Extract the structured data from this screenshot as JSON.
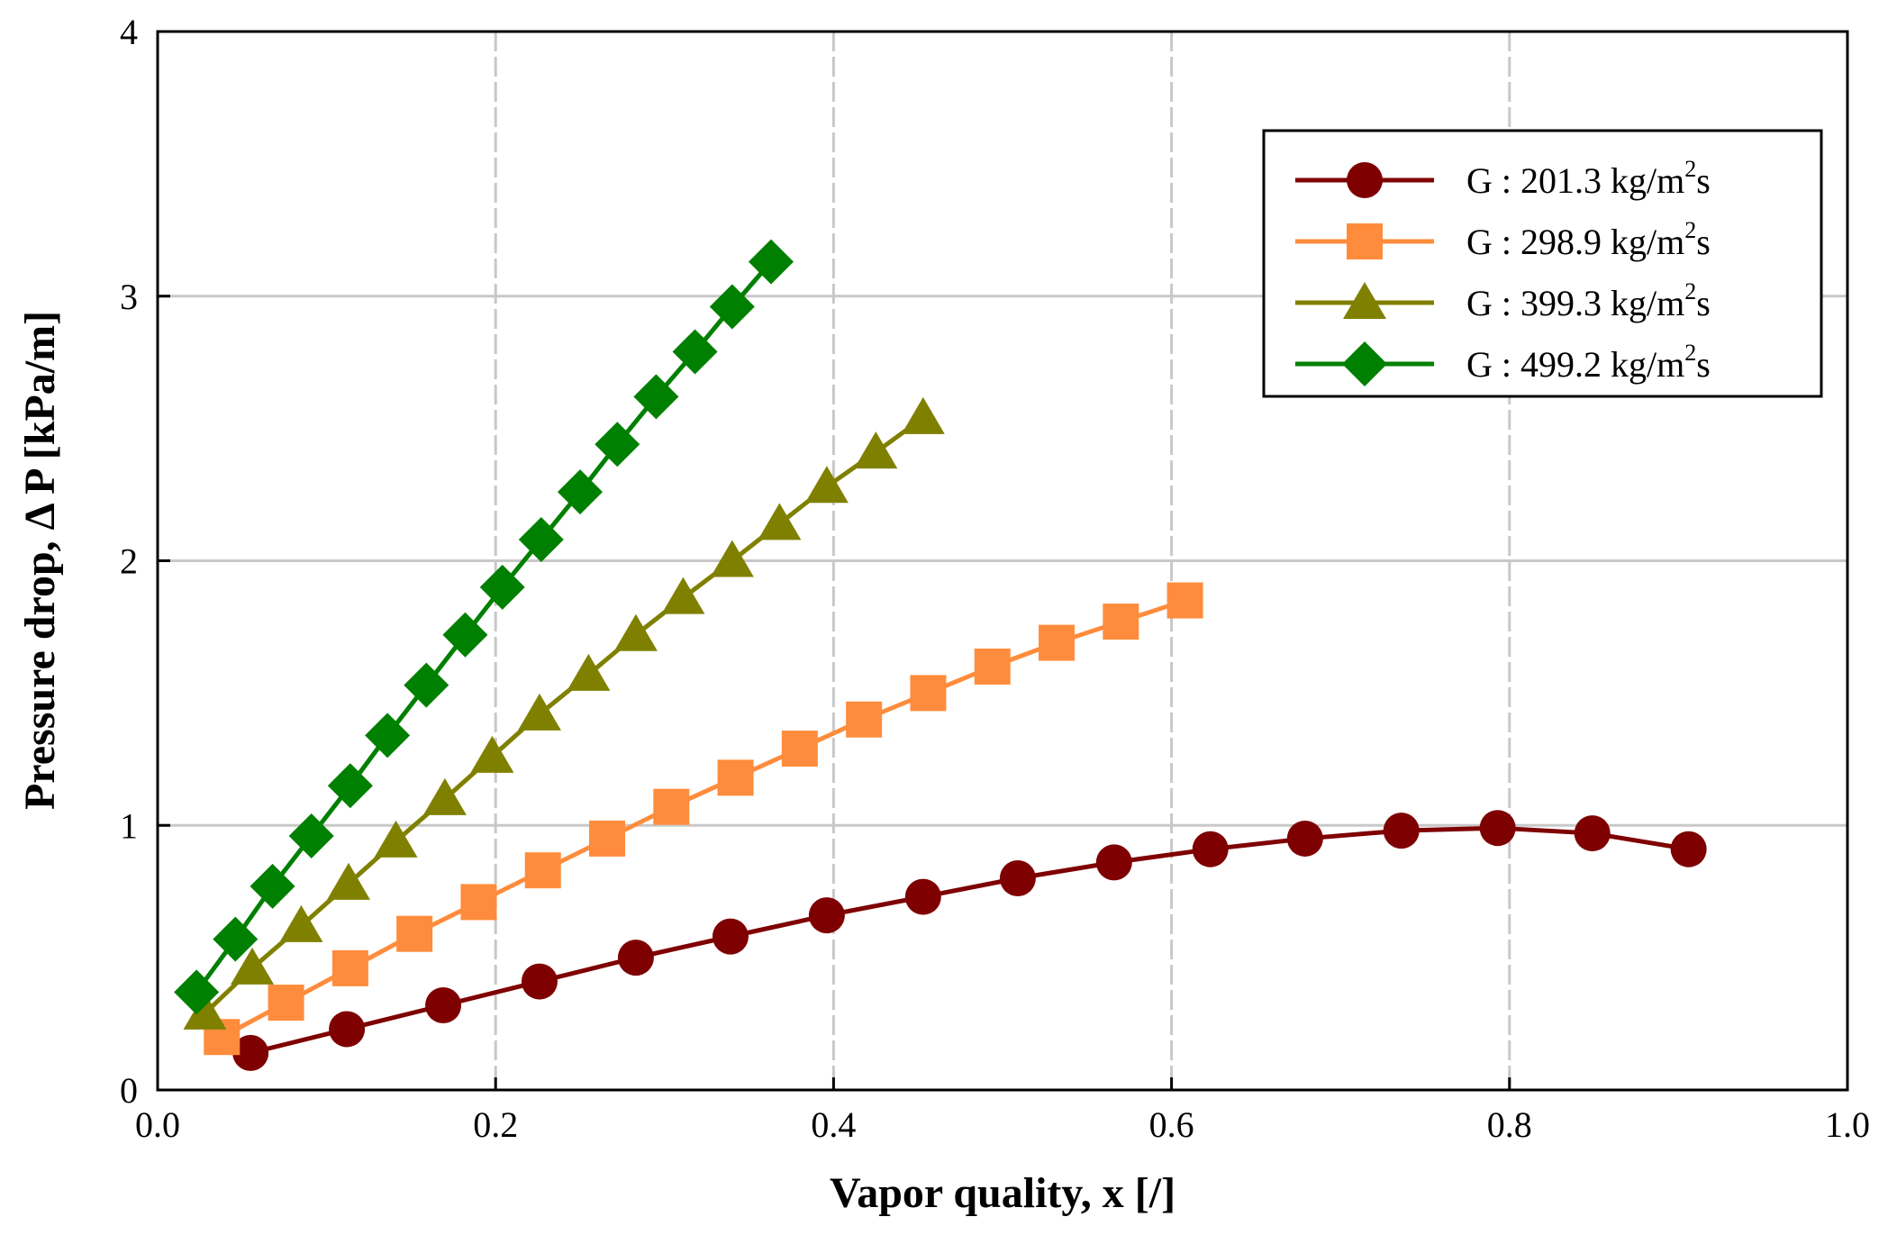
{
  "chart_data": {
    "type": "line",
    "title": "",
    "xlabel": "Vapor quality, x [/]",
    "ylabel": "Pressure drop, Δ  P [kPa/m]",
    "xlim": [
      0.0,
      1.0
    ],
    "ylim": [
      0,
      4
    ],
    "x_ticks": [
      "0.0",
      "0.2",
      "0.4",
      "0.6",
      "0.8",
      "1.0"
    ],
    "y_ticks": [
      "0",
      "1",
      "2",
      "3",
      "4"
    ],
    "grid": true,
    "legend_position": "top-right",
    "series": [
      {
        "name": "G : 201.3 kg/m2s",
        "legend_main": "G : 201.3 kg/m",
        "legend_sup": "2",
        "legend_tail": "s",
        "marker": "circle",
        "color": "#7f0000",
        "x": [
          0.055,
          0.112,
          0.169,
          0.226,
          0.283,
          0.339,
          0.396,
          0.453,
          0.509,
          0.566,
          0.623,
          0.679,
          0.736,
          0.793,
          0.849,
          0.906
        ],
        "y": [
          0.14,
          0.23,
          0.32,
          0.41,
          0.5,
          0.58,
          0.66,
          0.73,
          0.8,
          0.86,
          0.91,
          0.95,
          0.98,
          0.99,
          0.97,
          0.91
        ]
      },
      {
        "name": "G : 298.9 kg/m2s",
        "legend_main": "G : 298.9 kg/m",
        "legend_sup": "2",
        "legend_tail": "s",
        "marker": "square",
        "color": "#ff8c3c",
        "x": [
          0.038,
          0.076,
          0.114,
          0.152,
          0.19,
          0.228,
          0.266,
          0.304,
          0.342,
          0.38,
          0.418,
          0.456,
          0.494,
          0.532,
          0.57,
          0.608
        ],
        "y": [
          0.2,
          0.33,
          0.46,
          0.59,
          0.71,
          0.83,
          0.95,
          1.07,
          1.18,
          1.29,
          1.4,
          1.5,
          1.6,
          1.69,
          1.77,
          1.85
        ]
      },
      {
        "name": "G : 399.3 kg/m2s",
        "legend_main": "G : 399.3 kg/m",
        "legend_sup": "2",
        "legend_tail": "s",
        "marker": "triangle",
        "color": "#808000",
        "x": [
          0.028,
          0.056,
          0.085,
          0.113,
          0.141,
          0.17,
          0.198,
          0.226,
          0.255,
          0.283,
          0.311,
          0.34,
          0.368,
          0.396,
          0.425,
          0.453
        ],
        "y": [
          0.29,
          0.46,
          0.62,
          0.78,
          0.94,
          1.1,
          1.26,
          1.42,
          1.57,
          1.72,
          1.86,
          2.0,
          2.14,
          2.28,
          2.41,
          2.54
        ]
      },
      {
        "name": "G : 499.2 kg/m2s",
        "legend_main": "G : 499.2 kg/m",
        "legend_sup": "2",
        "legend_tail": "s",
        "marker": "diamond",
        "color": "#008000",
        "x": [
          0.023,
          0.046,
          0.068,
          0.091,
          0.114,
          0.136,
          0.159,
          0.182,
          0.204,
          0.227,
          0.25,
          0.272,
          0.295,
          0.318,
          0.34,
          0.363
        ],
        "y": [
          0.37,
          0.57,
          0.77,
          0.96,
          1.15,
          1.34,
          1.53,
          1.72,
          1.9,
          2.08,
          2.26,
          2.44,
          2.62,
          2.79,
          2.96,
          3.13
        ]
      }
    ]
  }
}
